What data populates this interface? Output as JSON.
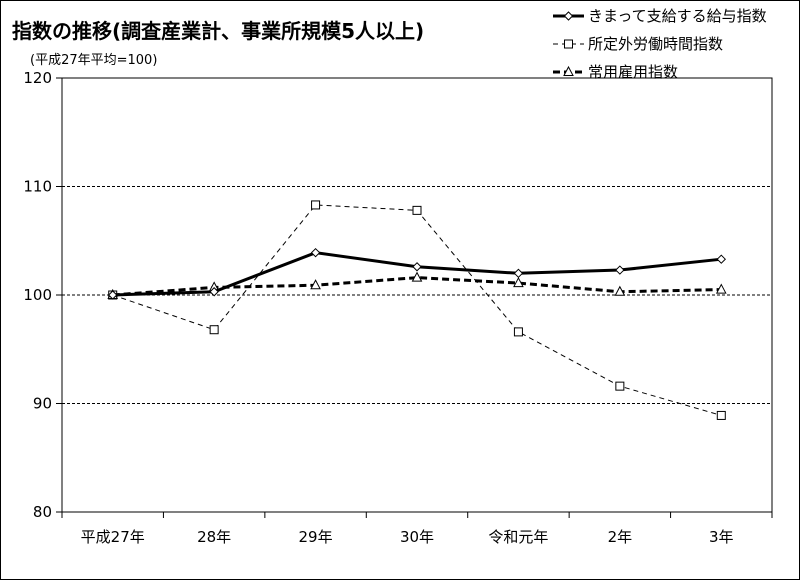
{
  "chart_data": {
    "type": "line",
    "title": "指数の推移(調査産業計、事業所規模5人以上)",
    "subtitle": "(平成27年平均=100)",
    "categories": [
      "平成27年",
      "28年",
      "29年",
      "30年",
      "令和元年",
      "2年",
      "3年"
    ],
    "ylim": [
      80,
      120
    ],
    "yticks": [
      120,
      110,
      100,
      90,
      80
    ],
    "grid": "horizontal-dashed",
    "legend_position": "top-right",
    "series": [
      {
        "name": "きまって支給する給与指数",
        "values": [
          100.0,
          100.3,
          103.9,
          102.6,
          102.0,
          102.3,
          103.3
        ],
        "color": "#000000",
        "marker": "diamond",
        "line": "solid-thick"
      },
      {
        "name": "所定外労働時間指数",
        "values": [
          100.0,
          96.8,
          108.3,
          107.8,
          96.6,
          91.6,
          88.9
        ],
        "color": "#000000",
        "marker": "square",
        "line": "dashed-thin"
      },
      {
        "name": "常用雇用指数",
        "values": [
          100.0,
          100.7,
          100.9,
          101.6,
          101.1,
          100.3,
          100.5
        ],
        "color": "#000000",
        "marker": "triangle",
        "line": "dashed-thick"
      }
    ]
  }
}
